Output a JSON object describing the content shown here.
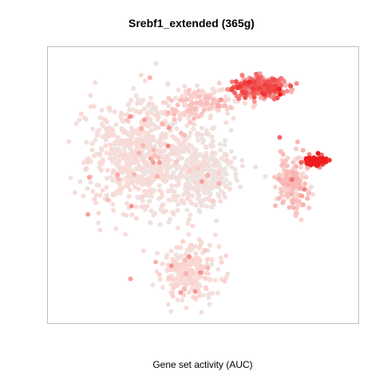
{
  "chart_data": {
    "type": "scatter",
    "title": "Srebf1_extended (365g)",
    "xlabel": "Gene set activity (AUC)",
    "ylabel": "",
    "grid": false,
    "legend": "none",
    "color_scale": {
      "low": "#e6e8e6",
      "mid": "#fbd9d5",
      "high": "#ee1c1c"
    },
    "clusters": [
      {
        "name": "top-left-mass",
        "cx": 0.3,
        "cy": 0.62,
        "sx": 0.17,
        "sy": 0.22,
        "n": 700,
        "level": 0.1
      },
      {
        "name": "center-mass",
        "cx": 0.5,
        "cy": 0.55,
        "sx": 0.1,
        "sy": 0.12,
        "n": 320,
        "level": 0.06
      },
      {
        "name": "top-right-cluster",
        "cx": 0.69,
        "cy": 0.88,
        "sx": 0.08,
        "sy": 0.035,
        "n": 280,
        "level": 0.55
      },
      {
        "name": "top-bridge",
        "cx": 0.5,
        "cy": 0.82,
        "sx": 0.12,
        "sy": 0.05,
        "n": 120,
        "level": 0.18
      },
      {
        "name": "right-arm",
        "cx": 0.8,
        "cy": 0.52,
        "sx": 0.05,
        "sy": 0.1,
        "n": 180,
        "level": 0.22
      },
      {
        "name": "right-tip",
        "cx": 0.88,
        "cy": 0.6,
        "sx": 0.035,
        "sy": 0.018,
        "n": 90,
        "level": 0.75
      },
      {
        "name": "bottom-lobe",
        "cx": 0.45,
        "cy": 0.18,
        "sx": 0.09,
        "sy": 0.09,
        "n": 260,
        "level": 0.12
      }
    ]
  }
}
